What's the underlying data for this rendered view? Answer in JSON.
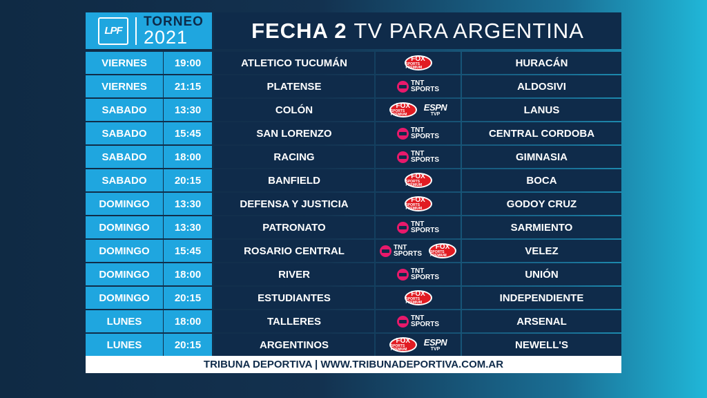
{
  "header": {
    "logo_mark": "LPF",
    "logo_torneo": "TORNEO",
    "logo_year": "2021",
    "title_bold": "FECHA 2",
    "title_rest": "TV PARA ARGENTINA"
  },
  "colors": {
    "day_bg": "#1fa6df",
    "cell_bg": "#0f2b4a",
    "fox_red": "#e11b22",
    "tnt_pink": "#e8196b"
  },
  "broadcasters": {
    "fox": {
      "line1": "FOX",
      "line2": "SPORTS PREMIUM"
    },
    "tnt": {
      "line1": "TNT",
      "line2": "SPORTS"
    },
    "espn": {
      "line1": "ESPN",
      "line2": "TVP"
    }
  },
  "matches": [
    {
      "day": "VIERNES",
      "time": "19:00",
      "home": "ATLETICO TUCUMÁN",
      "away": "HURACÁN",
      "tv": [
        "fox"
      ]
    },
    {
      "day": "VIERNES",
      "time": "21:15",
      "home": "PLATENSE",
      "away": "ALDOSIVI",
      "tv": [
        "tnt"
      ]
    },
    {
      "day": "SABADO",
      "time": "13:30",
      "home": "COLÓN",
      "away": "LANUS",
      "tv": [
        "fox",
        "espn"
      ]
    },
    {
      "day": "SABADO",
      "time": "15:45",
      "home": "SAN LORENZO",
      "away": "CENTRAL CORDOBA",
      "tv": [
        "tnt"
      ]
    },
    {
      "day": "SABADO",
      "time": "18:00",
      "home": "RACING",
      "away": "GIMNASIA",
      "tv": [
        "tnt"
      ]
    },
    {
      "day": "SABADO",
      "time": "20:15",
      "home": "BANFIELD",
      "away": "BOCA",
      "tv": [
        "fox"
      ]
    },
    {
      "day": "DOMINGO",
      "time": "13:30",
      "home": "DEFENSA Y JUSTICIA",
      "away": "GODOY CRUZ",
      "tv": [
        "fox"
      ]
    },
    {
      "day": "DOMINGO",
      "time": "13:30",
      "home": "PATRONATO",
      "away": "SARMIENTO",
      "tv": [
        "tnt"
      ]
    },
    {
      "day": "DOMINGO",
      "time": "15:45",
      "home": "ROSARIO CENTRAL",
      "away": "VELEZ",
      "tv": [
        "tnt",
        "fox"
      ]
    },
    {
      "day": "DOMINGO",
      "time": "18:00",
      "home": "RIVER",
      "away": "UNIÓN",
      "tv": [
        "tnt"
      ]
    },
    {
      "day": "DOMINGO",
      "time": "20:15",
      "home": "ESTUDIANTES",
      "away": "INDEPENDIENTE",
      "tv": [
        "fox"
      ]
    },
    {
      "day": "LUNES",
      "time": "18:00",
      "home": "TALLERES",
      "away": "ARSENAL",
      "tv": [
        "tnt"
      ]
    },
    {
      "day": "LUNES",
      "time": "20:15",
      "home": "ARGENTINOS",
      "away": "NEWELL'S",
      "tv": [
        "fox",
        "espn"
      ]
    }
  ],
  "footer": "TRIBUNA DEPORTIVA | WWW.TRIBUNADEPORTIVA.COM.AR"
}
